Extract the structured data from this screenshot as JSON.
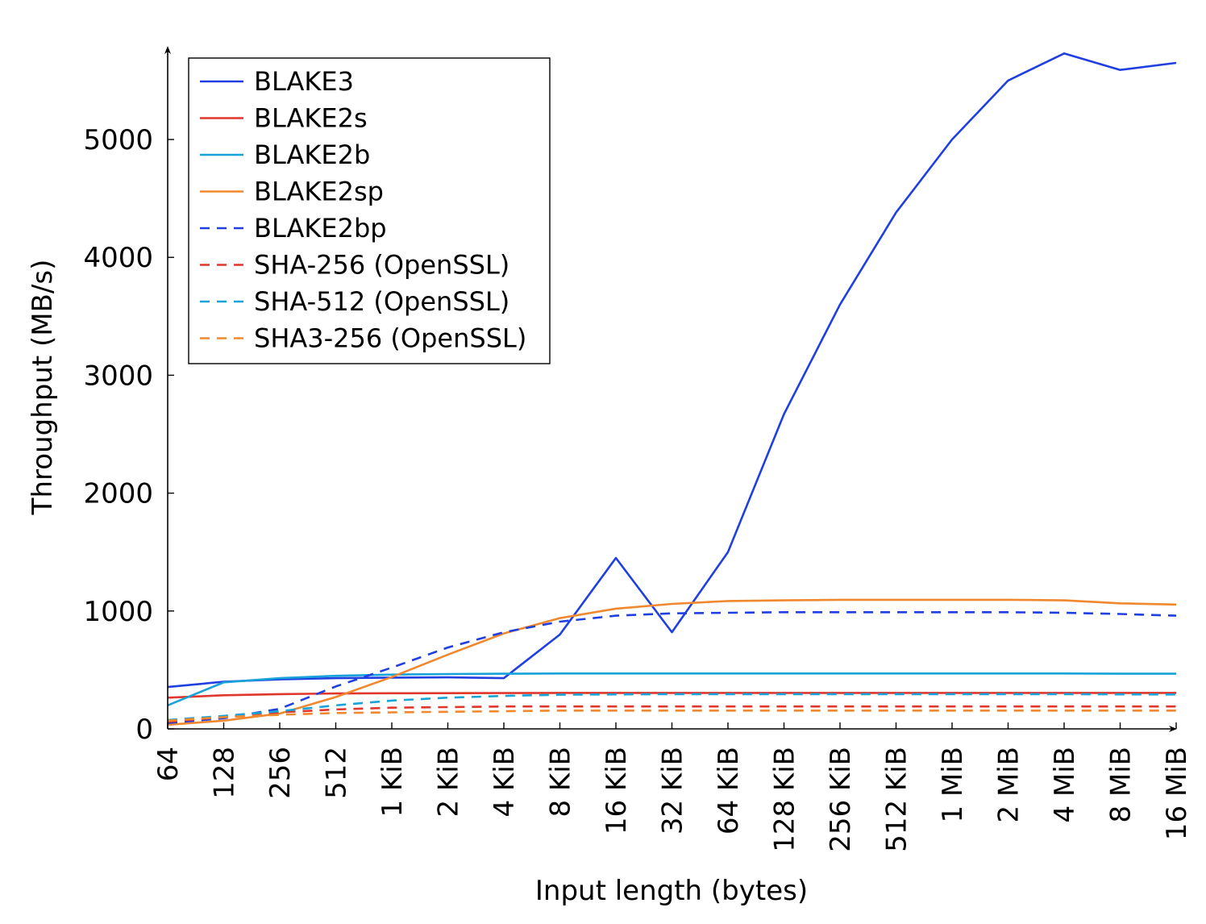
{
  "chart_data": {
    "type": "line",
    "xlabel": "Input length (bytes)",
    "ylabel": "Throughput (MB/s)",
    "ylim": [
      0,
      5750
    ],
    "yticks": [
      0,
      1000,
      2000,
      3000,
      4000,
      5000
    ],
    "ytick_labels": [
      "0",
      "1000",
      "2000",
      "3000",
      "4000",
      "5000"
    ],
    "categories": [
      "64",
      "128",
      "256",
      "512",
      "1 KiB",
      "2 KiB",
      "4 KiB",
      "8 KiB",
      "16 KiB",
      "32 KiB",
      "64 KiB",
      "128 KiB",
      "256 KiB",
      "512 KiB",
      "1 MiB",
      "2 MiB",
      "4 MiB",
      "8 MiB",
      "16 MiB"
    ],
    "legend_position": "top-left",
    "grid": false,
    "series": [
      {
        "name": "BLAKE3",
        "color": "#1f3fe0",
        "dashed": false,
        "values": [
          355,
          400,
          420,
          430,
          435,
          437,
          430,
          800,
          1450,
          820,
          1500,
          2670,
          3600,
          4380,
          5000,
          5500,
          5730,
          5590,
          5650
        ]
      },
      {
        "name": "BLAKE2s",
        "color": "#e0362c",
        "dashed": false,
        "values": [
          265,
          285,
          295,
          300,
          302,
          303,
          304,
          305,
          305,
          305,
          305,
          305,
          305,
          305,
          305,
          305,
          305,
          305,
          305
        ]
      },
      {
        "name": "BLAKE2b",
        "color": "#17a2d8",
        "dashed": false,
        "values": [
          200,
          395,
          430,
          450,
          460,
          465,
          468,
          470,
          470,
          470,
          470,
          470,
          470,
          470,
          470,
          470,
          470,
          468,
          468
        ]
      },
      {
        "name": "BLAKE2sp",
        "color": "#f0882f",
        "dashed": false,
        "values": [
          35,
          70,
          130,
          270,
          440,
          630,
          810,
          940,
          1020,
          1060,
          1085,
          1090,
          1095,
          1095,
          1095,
          1095,
          1090,
          1065,
          1055
        ]
      },
      {
        "name": "BLAKE2bp",
        "color": "#1f3fe0",
        "dashed": true,
        "values": [
          50,
          90,
          170,
          360,
          520,
          690,
          820,
          910,
          960,
          980,
          985,
          990,
          990,
          990,
          990,
          990,
          985,
          975,
          960
        ]
      },
      {
        "name": "SHA-256 (OpenSSL)",
        "color": "#e0362c",
        "dashed": true,
        "values": [
          60,
          100,
          140,
          165,
          180,
          185,
          190,
          190,
          190,
          190,
          190,
          190,
          190,
          190,
          190,
          190,
          190,
          190,
          190
        ]
      },
      {
        "name": "SHA-512 (OpenSSL)",
        "color": "#17a2d8",
        "dashed": true,
        "values": [
          75,
          110,
          150,
          200,
          240,
          265,
          280,
          290,
          293,
          295,
          295,
          295,
          295,
          295,
          295,
          295,
          295,
          293,
          292
        ]
      },
      {
        "name": "SHA3-256 (OpenSSL)",
        "color": "#f0882f",
        "dashed": true,
        "values": [
          70,
          100,
          120,
          135,
          140,
          145,
          150,
          155,
          155,
          155,
          155,
          155,
          155,
          155,
          155,
          155,
          155,
          155,
          155
        ]
      }
    ]
  }
}
